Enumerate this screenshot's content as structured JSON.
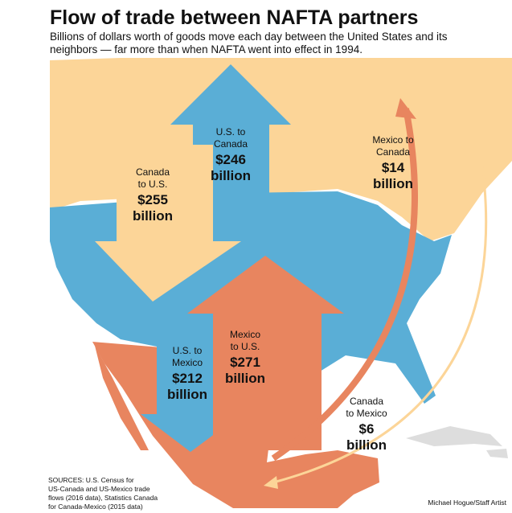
{
  "header": {
    "title": "Flow of trade between NAFTA partners",
    "subtitle": [
      "Billions of dollars worth of goods move each day between the United States and its",
      "neighbors — far more than when NAFTA went into effect in 1994."
    ]
  },
  "flows": [
    {
      "lines": [
        "Canada",
        "to U.S."
      ],
      "amount": "$255",
      "unit": "billion"
    },
    {
      "lines": [
        "U.S. to",
        "Canada"
      ],
      "amount": "$246",
      "unit": "billion"
    },
    {
      "lines": [
        "Mexico to",
        "Canada"
      ],
      "amount": "$14",
      "unit": "billion"
    },
    {
      "lines": [
        "U.S. to",
        "Mexico"
      ],
      "amount": "$212",
      "unit": "billion"
    },
    {
      "lines": [
        "Mexico",
        "to U.S."
      ],
      "amount": "$271",
      "unit": "billion"
    },
    {
      "lines": [
        "Canada",
        "to Mexico"
      ],
      "amount": "$6",
      "unit": "billion"
    }
  ],
  "footer": {
    "sources": [
      "SOURCES: U.S. Census for",
      "US-Canada and US-Mexico trade",
      "flows (2016 data), Statistics Canada",
      "for Canada-Mexico (2015 data)"
    ],
    "credit": "Michael Hogue/Staff Artist"
  }
}
